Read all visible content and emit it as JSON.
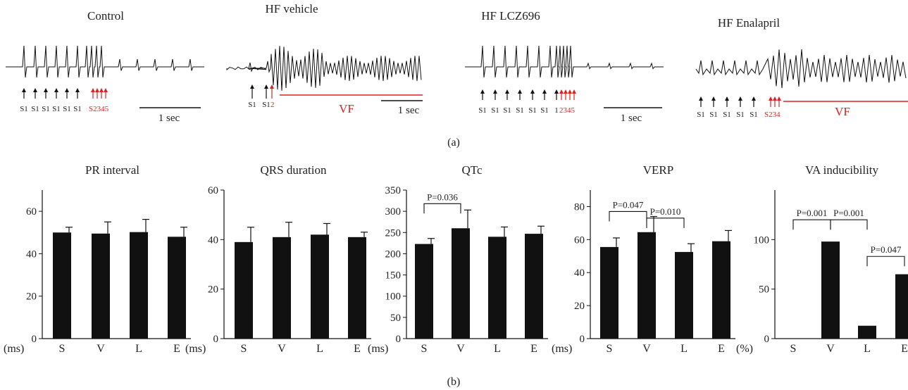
{
  "panel_a": {
    "label": "(a)",
    "traces": [
      {
        "title": "Control",
        "stimuli": [
          "S1",
          "S1",
          "S1",
          "S1",
          "S1",
          "S1"
        ],
        "extra_label": "S2345",
        "vf_label": "",
        "scale_label": "1 sec"
      },
      {
        "title": "HF vehicle",
        "stimuli": [
          "S1",
          "S1"
        ],
        "extra_label": "2",
        "vf_label": "VF",
        "scale_label": "1 sec"
      },
      {
        "title": "HF LCZ696",
        "stimuli": [
          "S1",
          "S1",
          "S1",
          "S1",
          "S1",
          "S1",
          "1"
        ],
        "extra_label": "2345",
        "vf_label": "",
        "scale_label": "1 sec"
      },
      {
        "title": "HF Enalapril",
        "stimuli": [
          "S1",
          "S1",
          "S1",
          "S1",
          "S1"
        ],
        "extra_label": "S234",
        "vf_label": "VF",
        "scale_label": ""
      }
    ],
    "colors": {
      "trace": "#111111",
      "red": "#e02020"
    }
  },
  "panel_b": {
    "label": "(b)"
  },
  "chart_data": [
    {
      "type": "bar",
      "title": "PR interval",
      "unit": "(ms)",
      "categories": [
        "S",
        "V",
        "L",
        "E"
      ],
      "values": [
        50,
        49.5,
        50.2,
        48
      ],
      "errors": [
        2.5,
        5.5,
        6,
        4.5
      ],
      "ylim": [
        0,
        70
      ],
      "yticks": [
        "0",
        "20",
        "40",
        "60"
      ],
      "yticks_values": [
        0,
        20,
        40,
        60
      ],
      "annotations": []
    },
    {
      "type": "bar",
      "title": "QRS duration",
      "unit": "(ms)",
      "categories": [
        "S",
        "V",
        "L",
        "E"
      ],
      "values": [
        39,
        41,
        42,
        41
      ],
      "errors": [
        6,
        6,
        4.5,
        2
      ],
      "ylim": [
        0,
        60
      ],
      "yticks": [
        "0",
        "20",
        "40",
        "60"
      ],
      "yticks_values": [
        0,
        20,
        40,
        60
      ],
      "annotations": []
    },
    {
      "type": "bar",
      "title": "QTc",
      "unit": "(ms)",
      "categories": [
        "S",
        "V",
        "L",
        "E"
      ],
      "values": [
        223,
        260,
        240,
        247
      ],
      "errors": [
        13,
        43,
        23,
        18
      ],
      "ylim": [
        0,
        350
      ],
      "yticks": [
        "0",
        "50",
        "100",
        "150",
        "200",
        "250",
        "300",
        "350"
      ],
      "yticks_values": [
        0,
        50,
        100,
        150,
        200,
        250,
        300,
        350
      ],
      "annotations": [
        {
          "from": 0,
          "to": 1,
          "level": 318,
          "text": "P=0.036"
        }
      ]
    },
    {
      "type": "bar",
      "title": "VERP",
      "unit": "(ms)",
      "categories": [
        "S",
        "V",
        "L",
        "E"
      ],
      "values": [
        55.5,
        64.5,
        52.5,
        59
      ],
      "errors": [
        5.5,
        9.5,
        5,
        6.5
      ],
      "ylim": [
        0,
        90
      ],
      "yticks": [
        "0",
        "20",
        "40",
        "60",
        "80"
      ],
      "yticks_values": [
        0,
        20,
        40,
        60,
        80
      ],
      "annotations": [
        {
          "from": 0,
          "to": 1,
          "level": 77,
          "text": "P=0.047"
        },
        {
          "from": 1,
          "to": 2,
          "level": 73,
          "text": "P=0.010"
        }
      ]
    },
    {
      "type": "bar",
      "title": "VA inducibility",
      "unit": "(%)",
      "categories": [
        "S",
        "V",
        "L",
        "E"
      ],
      "values": [
        0,
        98,
        13,
        65
      ],
      "errors": [
        0,
        0,
        0,
        0
      ],
      "ylim": [
        0,
        150
      ],
      "yticks": [
        "0",
        "50",
        "100"
      ],
      "yticks_values": [
        0,
        50,
        100
      ],
      "annotations": [
        {
          "from": 0,
          "to": 1,
          "level": 120,
          "text": "P=0.001"
        },
        {
          "from": 1,
          "to": 2,
          "level": 120,
          "text": "P=0.001"
        },
        {
          "from": 2,
          "to": 3,
          "level": 83,
          "text": "P=0.047"
        }
      ]
    }
  ]
}
